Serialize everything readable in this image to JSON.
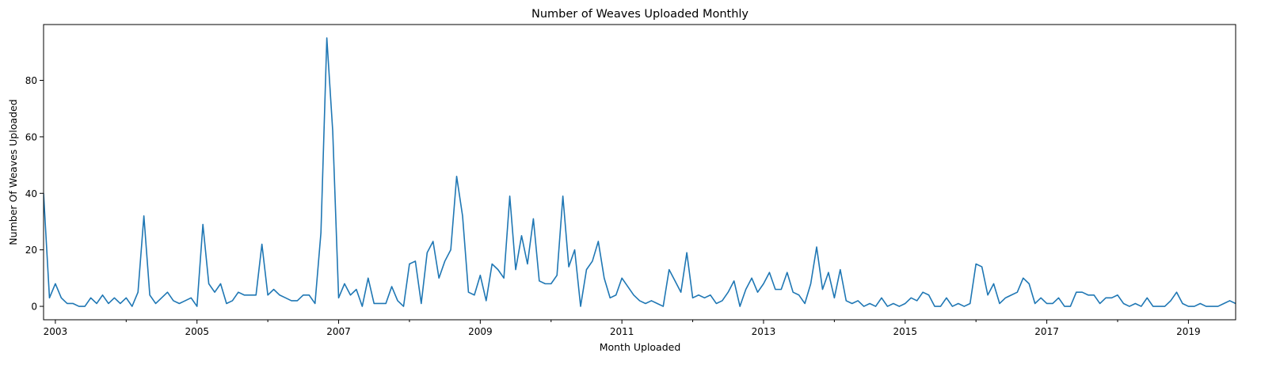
{
  "chart_data": {
    "type": "line",
    "title": "Number of Weaves Uploaded Monthly",
    "xlabel": "Month Uploaded",
    "ylabel": "Number Of Weaves Uploaded",
    "x_start": "2002-11",
    "x_end": "2019-09",
    "xlim": [
      "2002-11",
      "2019-09"
    ],
    "ylim": [
      -4.75,
      99.75
    ],
    "x_ticks": [
      {
        "date": "2003-01",
        "label": "2003"
      },
      {
        "date": "2005-01",
        "label": "2005"
      },
      {
        "date": "2007-01",
        "label": "2007"
      },
      {
        "date": "2009-01",
        "label": "2009"
      },
      {
        "date": "2011-01",
        "label": "2011"
      },
      {
        "date": "2013-01",
        "label": "2013"
      },
      {
        "date": "2015-01",
        "label": "2015"
      },
      {
        "date": "2017-01",
        "label": "2017"
      },
      {
        "date": "2019-01",
        "label": "2019"
      }
    ],
    "x_minor_ticks": [
      "2004-01",
      "2006-01",
      "2008-01",
      "2010-01",
      "2012-01",
      "2014-01",
      "2016-01",
      "2018-01"
    ],
    "y_ticks": [
      0,
      20,
      40,
      60,
      80
    ],
    "grid": false,
    "series": [
      {
        "color": "#1f77b4",
        "values": [
          40,
          3,
          8,
          3,
          1,
          1,
          0,
          0,
          3,
          1,
          4,
          1,
          3,
          1,
          3,
          0,
          5,
          32,
          4,
          1,
          3,
          5,
          2,
          1,
          2,
          3,
          0,
          29,
          8,
          5,
          8,
          1,
          2,
          5,
          4,
          4,
          4,
          22,
          4,
          6,
          4,
          3,
          2,
          2,
          4,
          4,
          1,
          26,
          95,
          62,
          3,
          8,
          4,
          6,
          0,
          10,
          1,
          1,
          1,
          7,
          2,
          0,
          15,
          16,
          1,
          19,
          23,
          10,
          16,
          20,
          46,
          32,
          5,
          4,
          11,
          2,
          15,
          13,
          10,
          39,
          13,
          25,
          15,
          31,
          9,
          8,
          8,
          11,
          39,
          14,
          20,
          0,
          13,
          16,
          23,
          10,
          3,
          4,
          10,
          7,
          4,
          2,
          1,
          2,
          1,
          0,
          13,
          9,
          5,
          19,
          3,
          4,
          3,
          4,
          1,
          2,
          5,
          9,
          0,
          6,
          10,
          5,
          8,
          12,
          6,
          6,
          12,
          5,
          4,
          1,
          8,
          21,
          6,
          12,
          3,
          13,
          2,
          1,
          2,
          0,
          1,
          0,
          3,
          0,
          1,
          0,
          1,
          3,
          2,
          5,
          4,
          0,
          0,
          3,
          0,
          1,
          0,
          1,
          15,
          14,
          4,
          8,
          1,
          3,
          4,
          5,
          10,
          8,
          1,
          3,
          1,
          1,
          3,
          0,
          0,
          5,
          5,
          4,
          4,
          1,
          3,
          3,
          4,
          1,
          0,
          1,
          0,
          3,
          0,
          0,
          0,
          2,
          5,
          1,
          0,
          0,
          1,
          0,
          0,
          0,
          1,
          2,
          1,
          0,
          1
        ]
      }
    ]
  }
}
